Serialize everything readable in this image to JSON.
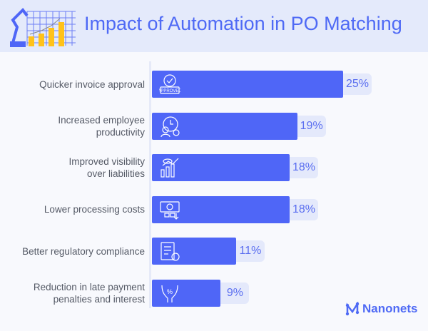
{
  "title": "Impact of Automation in PO Matching",
  "brand": "Nanonets",
  "colors": {
    "bar": "#4f66f7",
    "title": "#4f6af5",
    "header_bg": "#e4eafb",
    "pill": "#e4e9fb"
  },
  "chart_data": {
    "type": "bar",
    "orientation": "horizontal",
    "title": "Impact of Automation in PO Matching",
    "categories": [
      "Quicker invoice approval",
      "Increased employee productivity",
      "Improved visibility over liabilities",
      "Lower processing costs",
      "Better regulatory compliance",
      "Reduction in late payment penalties and interest"
    ],
    "label_lines": [
      [
        "Quicker invoice approval"
      ],
      [
        "Increased employee",
        "productivity"
      ],
      [
        "Improved visibility",
        "over liabilities"
      ],
      [
        "Lower processing costs"
      ],
      [
        "Better regulatory compliance"
      ],
      [
        "Reduction in late payment",
        "penalties and interest"
      ]
    ],
    "values": [
      25,
      19,
      18,
      18,
      11,
      9
    ],
    "data_labels": [
      "25%",
      "19%",
      "18%",
      "18%",
      "11%",
      "9%"
    ],
    "icons": [
      "approved-stamp-icon",
      "clock-gear-icon",
      "eye-chart-icon",
      "money-icon",
      "checklist-gear-icon",
      "hands-percent-icon"
    ],
    "icon_text": "APPROVED",
    "unit": "%",
    "grid": false
  }
}
